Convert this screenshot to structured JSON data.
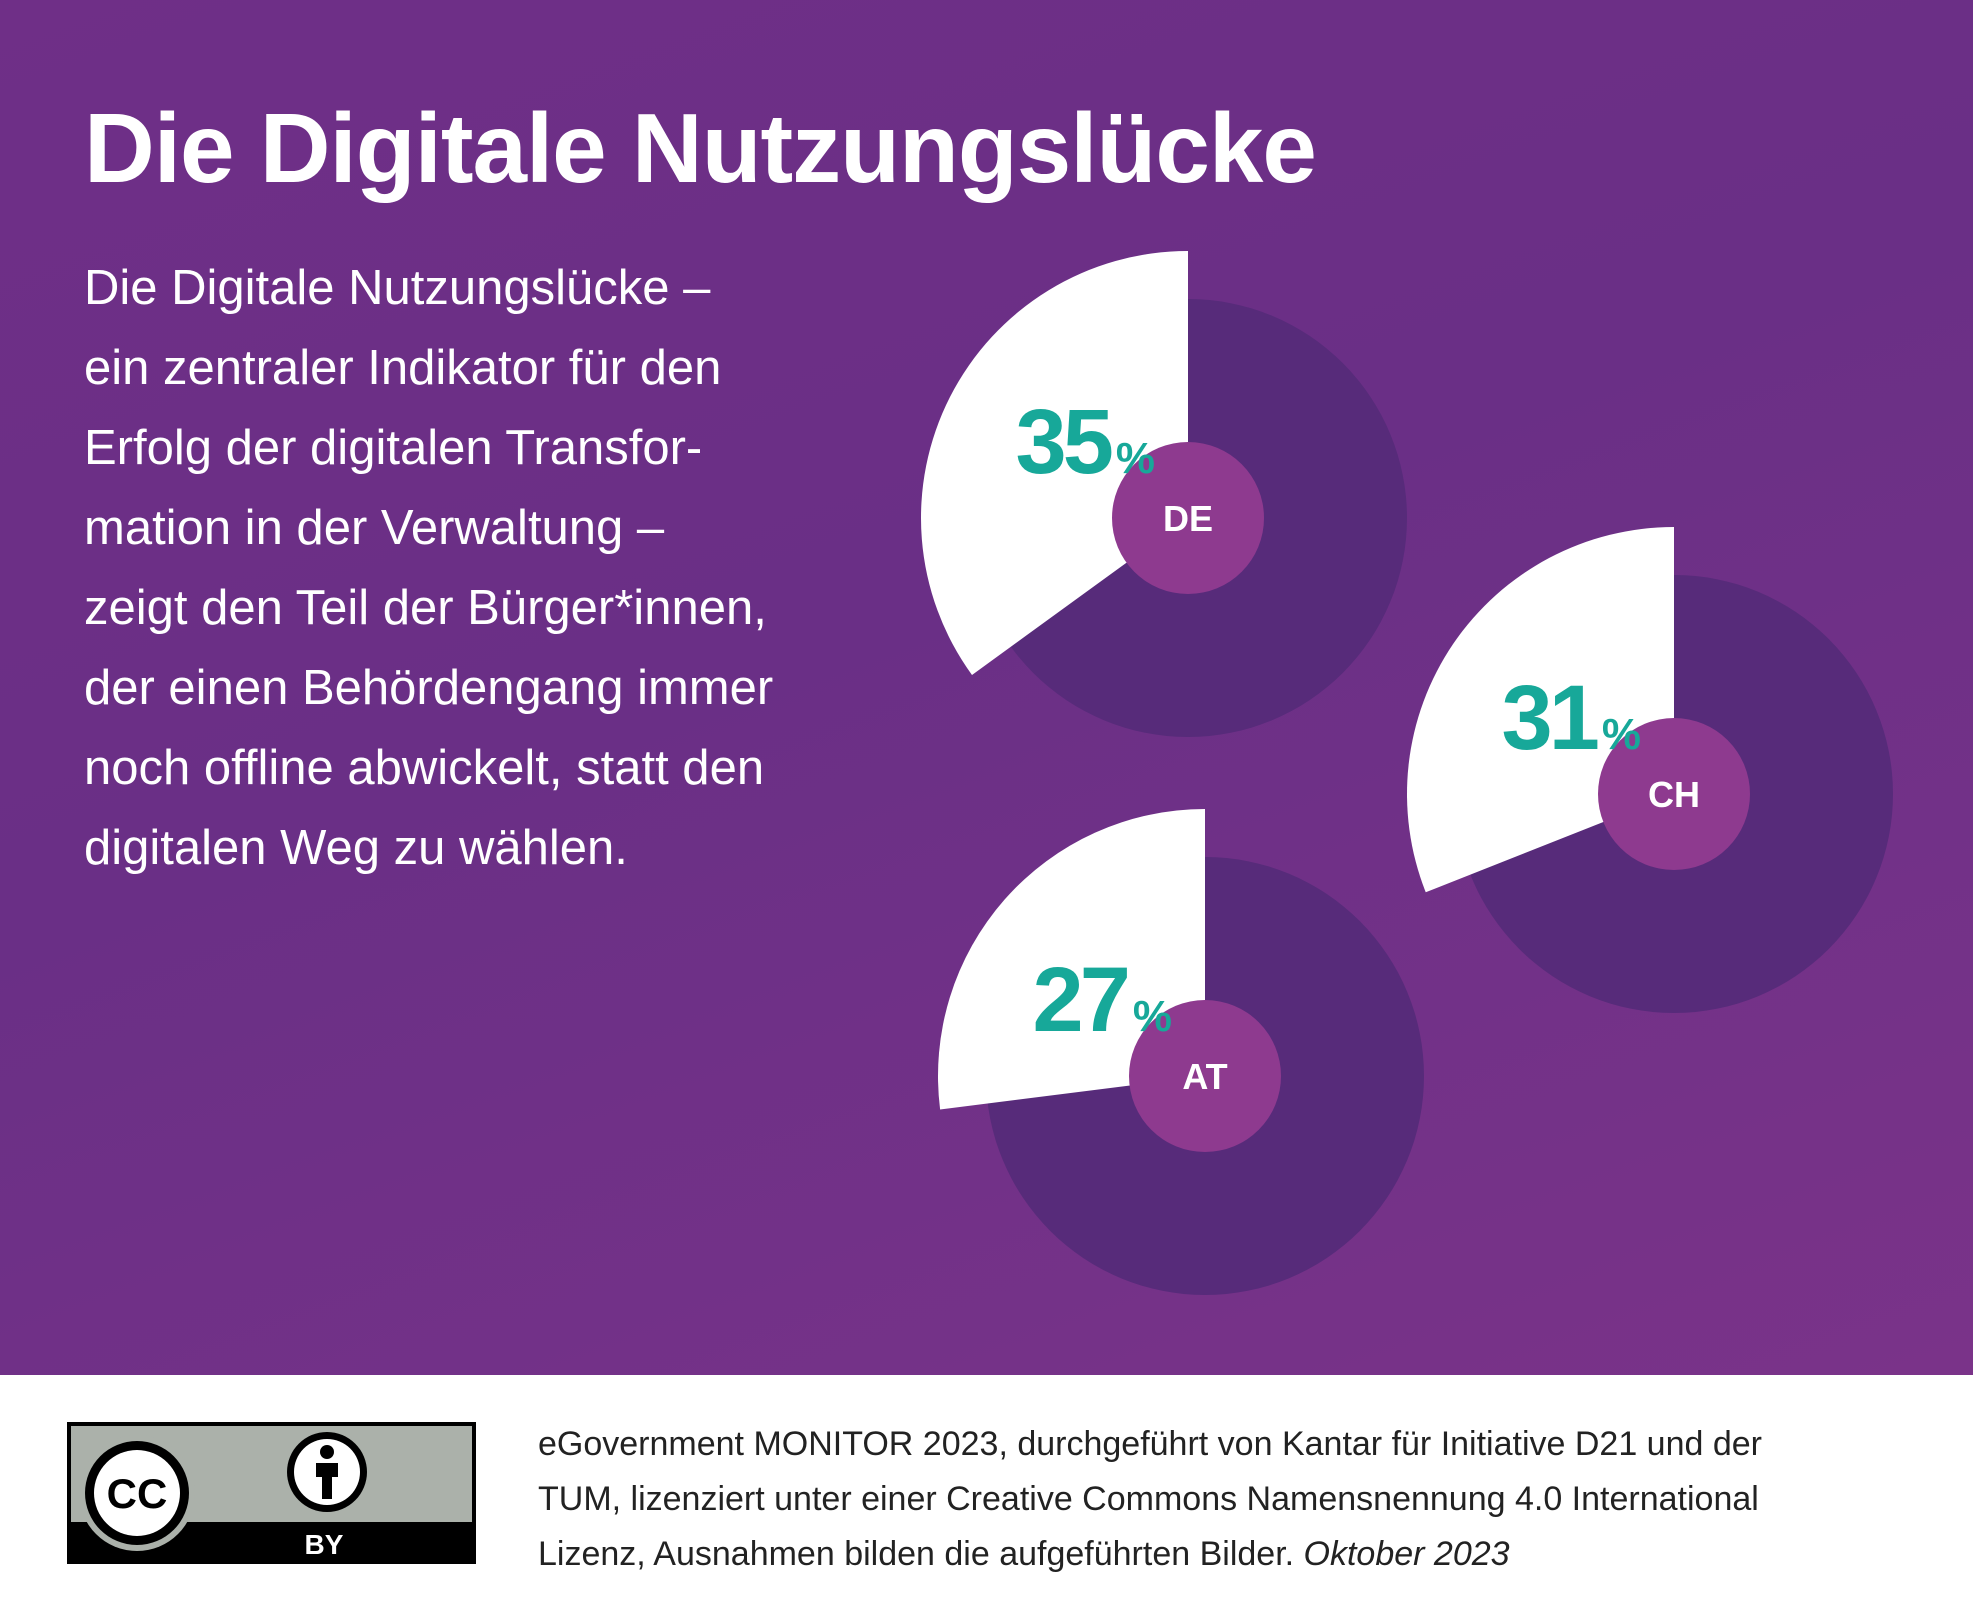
{
  "title": "Die Digitale Nutzungslücke",
  "body_lines": [
    "Die Digitale Nutzungslücke –",
    "ein zentraler Indikator für den",
    "Erfolg der digitalen Transfor-",
    "mation in der Verwaltung –",
    "zeigt den Teil der Bürger*innen,",
    "der einen Behördengang immer",
    "noch offline abwickelt, statt den",
    "digitalen Weg zu wählen."
  ],
  "chart_data": {
    "type": "pie",
    "unit": "%",
    "categories": [
      "DE",
      "CH",
      "AT"
    ],
    "values": [
      35,
      31,
      27
    ],
    "value_labels": [
      "35",
      "31",
      "27"
    ],
    "colors": {
      "highlight": "#ffffff",
      "rest": "#572b7a",
      "center": "#8e3a8f",
      "value_text": "#17a899"
    }
  },
  "footer": {
    "license_badge": {
      "cc": "CC",
      "by": "BY"
    },
    "credit_lines": [
      "eGovernment MONITOR 2023, durchgeführt von Kantar für Initiative D21 und der",
      "TUM, lizenziert unter einer Creative Commons Namensnennung 4.0 International",
      "Lizenz, Ausnahmen bilden die aufgeführten Bilder. "
    ],
    "date": "Oktober 2023"
  }
}
